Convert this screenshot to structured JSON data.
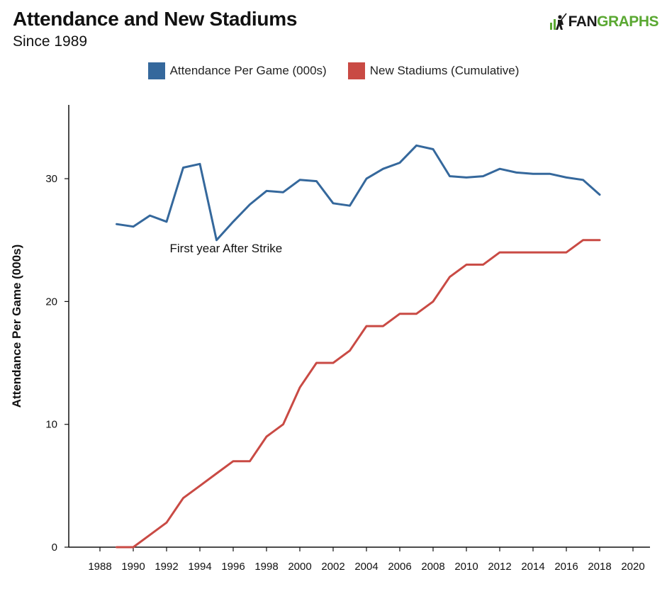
{
  "header": {
    "title": "Attendance and New Stadiums",
    "subtitle": "Since 1989"
  },
  "logo": {
    "icon": "batter-icon",
    "text_dark": "FAN",
    "text_green": "GRAPHS",
    "color_dark": "#1a1a1a",
    "color_green": "#5aa832"
  },
  "chart_data": {
    "type": "line",
    "title": "Attendance and New Stadiums",
    "subtitle": "Since 1989",
    "xlabel": "",
    "ylabel": "Attendance Per Game (000s)",
    "xlim": [
      1987,
      2021
    ],
    "ylim": [
      0,
      36
    ],
    "x_ticks": [
      1988,
      1990,
      1992,
      1994,
      1996,
      1998,
      2000,
      2002,
      2004,
      2006,
      2008,
      2010,
      2012,
      2014,
      2016,
      2018,
      2020
    ],
    "y_ticks": [
      0,
      10,
      20,
      30
    ],
    "grid": false,
    "legend_position": "top-center",
    "x": [
      1989,
      1990,
      1991,
      1992,
      1993,
      1994,
      1995,
      1996,
      1997,
      1998,
      1999,
      2000,
      2001,
      2002,
      2003,
      2004,
      2005,
      2006,
      2007,
      2008,
      2009,
      2010,
      2011,
      2012,
      2013,
      2014,
      2015,
      2016,
      2017,
      2018
    ],
    "series": [
      {
        "name": "Attendance Per Game (000s)",
        "color": "#35689c",
        "values": [
          26.3,
          26.1,
          27.0,
          26.5,
          30.9,
          31.2,
          25.0,
          26.5,
          27.9,
          29.0,
          28.9,
          29.9,
          29.8,
          28.0,
          27.8,
          30.0,
          30.8,
          31.3,
          32.7,
          32.4,
          30.2,
          30.1,
          30.2,
          30.8,
          30.5,
          30.4,
          30.4,
          30.1,
          29.9,
          28.7
        ]
      },
      {
        "name": "New Stadiums (Cumulative)",
        "color": "#c94a44",
        "values": [
          0,
          0,
          1,
          2,
          4,
          5,
          6,
          7,
          7,
          9,
          10,
          13,
          15,
          15,
          16,
          18,
          18,
          19,
          19,
          20,
          22,
          23,
          23,
          24,
          24,
          24,
          24,
          24,
          25,
          25
        ]
      }
    ],
    "annotations": [
      {
        "text": "First year After Strike",
        "x": 1995,
        "y": 24.3
      }
    ]
  }
}
